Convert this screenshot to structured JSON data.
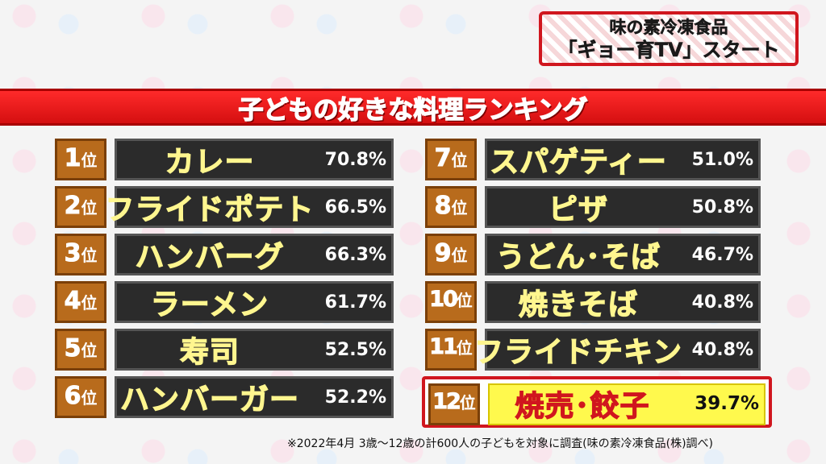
{
  "caption": {
    "line1": "味の素冷凍食品",
    "line2": "「ギョー育TV」スタート"
  },
  "chart_data": {
    "type": "table",
    "title": "子どもの好きな料理ランキング",
    "rank_suffix": "位",
    "rows": [
      {
        "rank": "1",
        "name": "カレー",
        "value": 70.8,
        "label": "70.8%"
      },
      {
        "rank": "2",
        "name": "フライドポテト",
        "value": 66.5,
        "label": "66.5%"
      },
      {
        "rank": "3",
        "name": "ハンバーグ",
        "value": 66.3,
        "label": "66.3%"
      },
      {
        "rank": "4",
        "name": "ラーメン",
        "value": 61.7,
        "label": "61.7%"
      },
      {
        "rank": "5",
        "name": "寿司",
        "value": 52.5,
        "label": "52.5%"
      },
      {
        "rank": "6",
        "name": "ハンバーガー",
        "value": 52.2,
        "label": "52.2%"
      },
      {
        "rank": "7",
        "name": "スパゲティー",
        "value": 51.0,
        "label": "51.0%"
      },
      {
        "rank": "8",
        "name": "ピザ",
        "value": 50.8,
        "label": "50.8%"
      },
      {
        "rank": "9",
        "name": "うどん･そば",
        "value": 46.7,
        "label": "46.7%"
      },
      {
        "rank": "10",
        "name": "焼きそば",
        "value": 40.8,
        "label": "40.8%"
      },
      {
        "rank": "11",
        "name": "フライドチキン",
        "value": 40.8,
        "label": "40.8%"
      },
      {
        "rank": "12",
        "name": "焼売･餃子",
        "value": 39.7,
        "label": "39.7%"
      }
    ],
    "highlight_rank": "12",
    "footnote": "※2022年4月 3歳～12歳の計600人の子どもを対象に調査(味の素冷凍食品(株)調べ)"
  },
  "colors": {
    "banner": "#e01414",
    "rank_badge": "#b86b1c",
    "item_bg": "#2b2b2b",
    "item_text": "#fff68f",
    "highlight_bg": "#fff94d",
    "highlight_text": "#d0161e"
  }
}
